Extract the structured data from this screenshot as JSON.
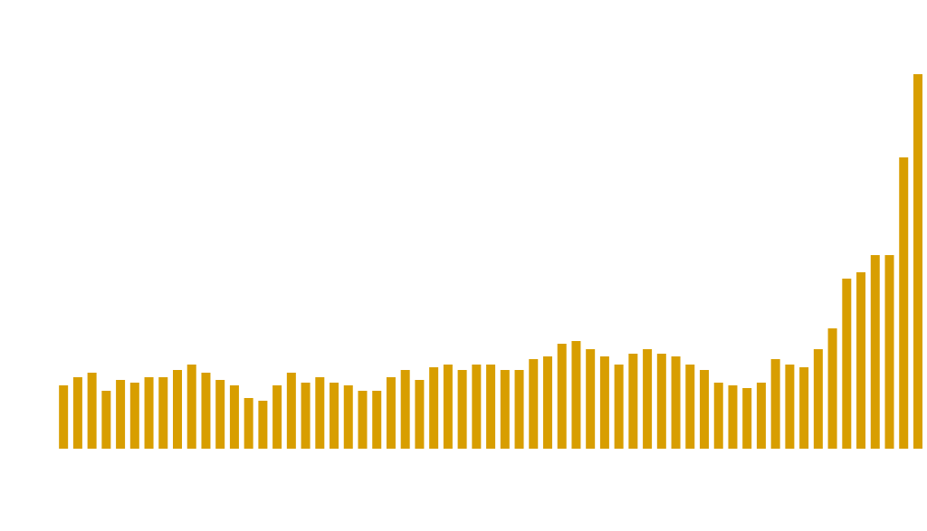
{
  "chart_data": {
    "type": "bar",
    "categories": [
      null,
      null,
      null,
      null,
      null,
      null,
      null,
      null,
      null,
      null,
      null,
      null,
      null,
      null,
      null,
      null,
      null,
      null,
      null,
      null,
      null,
      null,
      null,
      null,
      null,
      null,
      null,
      null,
      null,
      null,
      null,
      null,
      null,
      null,
      null,
      null,
      null,
      null,
      null,
      null,
      null,
      null,
      null,
      null,
      null,
      null,
      null,
      null,
      null,
      null,
      null,
      null,
      null,
      null,
      null,
      null,
      null,
      null,
      null,
      null,
      null
    ],
    "values": [
      70,
      79,
      84,
      64,
      76,
      73,
      79,
      79,
      87,
      93,
      84,
      76,
      70,
      56,
      53,
      70,
      84,
      73,
      79,
      73,
      70,
      64,
      64,
      79,
      87,
      76,
      90,
      93,
      87,
      93,
      93,
      87,
      87,
      99,
      102,
      116,
      119,
      110,
      102,
      93,
      105,
      110,
      105,
      102,
      93,
      87,
      73,
      70,
      67,
      73,
      99,
      93,
      90,
      110,
      133,
      188,
      195,
      214,
      214,
      322,
      414
    ],
    "color": "#d89e00",
    "ylim": [
      0,
      414
    ]
  }
}
